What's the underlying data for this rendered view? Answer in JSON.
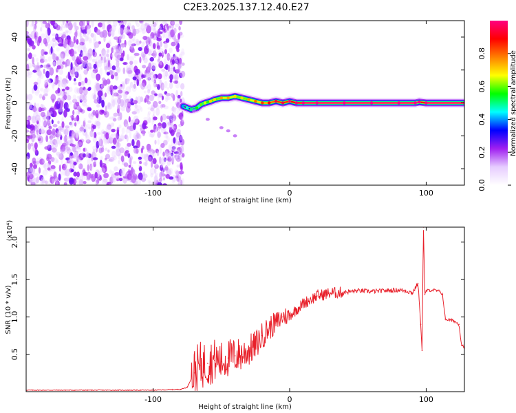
{
  "title": "C2E3.2025.137.12.40.E27",
  "chart_data": [
    {
      "type": "heatmap",
      "xlabel": "Height of straight line (km)",
      "ylabel": "Frequency (Hz)",
      "xlim": [
        -193,
        128
      ],
      "ylim": [
        -50,
        50
      ],
      "xticks": [
        -100,
        0,
        100
      ],
      "yticks": [
        -40,
        -20,
        0,
        20,
        40
      ],
      "colorbar": {
        "label": "Normalized spectral amplitude",
        "range": [
          0,
          1
        ],
        "ticks": [
          "0.0",
          "0.2",
          "0.4",
          "0.6",
          "0.8"
        ],
        "colors": [
          "#ffffff",
          "#e6ccff",
          "#a020f0",
          "#0000ff",
          "#00ffff",
          "#00ff00",
          "#ffff00",
          "#ff8000",
          "#ff0000",
          "#ff0080"
        ]
      },
      "noise_region_x": [
        -193,
        -78
      ],
      "ridge": {
        "x": [
          -78,
          -75,
          -72,
          -68,
          -65,
          -62,
          -58,
          -55,
          -50,
          -45,
          -40,
          -35,
          -30,
          -25,
          -20,
          -15,
          -10,
          -5,
          0,
          5,
          10,
          20,
          40,
          60,
          80,
          92,
          95,
          100,
          128
        ],
        "y": [
          -2,
          -3,
          -4,
          -3,
          -1,
          0,
          1,
          2,
          3,
          3,
          4,
          3,
          2,
          1,
          0,
          0,
          1,
          0,
          1,
          0,
          0,
          0,
          0,
          0,
          0,
          0,
          0.5,
          0,
          0
        ],
        "amplitude": [
          0.3,
          0.35,
          0.4,
          0.45,
          0.5,
          0.55,
          0.6,
          0.6,
          0.65,
          0.65,
          0.6,
          0.6,
          0.65,
          0.7,
          0.75,
          0.8,
          0.85,
          0.85,
          0.9,
          0.95,
          1.0,
          1.0,
          1.0,
          1.0,
          1.0,
          1.0,
          0.9,
          1.0,
          1.0
        ]
      },
      "branch": {
        "x": [
          -70,
          -60,
          -50,
          -45,
          -40
        ],
        "y": [
          -5,
          -10,
          -15,
          -17,
          -20
        ]
      }
    },
    {
      "type": "line",
      "xlabel": "Height of straight line (km)",
      "ylabel": "SNR (10 * v/v)",
      "y_multiplier": "(x10⁴)",
      "xlim": [
        -193,
        128
      ],
      "ylim": [
        0,
        2.2
      ],
      "xticks": [
        -100,
        0,
        100
      ],
      "yticks": [
        "0.5",
        "1.0",
        "1.5",
        "2.0"
      ],
      "color": "#e8202a",
      "series": [
        {
          "x": [
            -193,
            -150,
            -100,
            -80,
            -75,
            -70,
            -65,
            -60,
            -55,
            -50,
            -45,
            -40,
            -35,
            -30,
            -25,
            -20,
            -15,
            -10,
            -5,
            0,
            5,
            10,
            20,
            30,
            40,
            50,
            60,
            70,
            80,
            85,
            90,
            94,
            96,
            97,
            98,
            99,
            100,
            105,
            110,
            112,
            114,
            120,
            124,
            126,
            128
          ],
          "y": [
            0.02,
            0.02,
            0.02,
            0.03,
            0.06,
            0.25,
            0.35,
            0.38,
            0.42,
            0.4,
            0.45,
            0.48,
            0.5,
            0.55,
            0.62,
            0.75,
            0.85,
            0.92,
            1.0,
            1.02,
            1.1,
            1.18,
            1.28,
            1.32,
            1.33,
            1.35,
            1.34,
            1.35,
            1.36,
            1.35,
            1.32,
            1.45,
            0.9,
            0.55,
            2.2,
            1.3,
            1.35,
            1.36,
            1.34,
            1.3,
            0.97,
            0.95,
            0.9,
            0.62,
            0.6
          ]
        }
      ]
    }
  ]
}
